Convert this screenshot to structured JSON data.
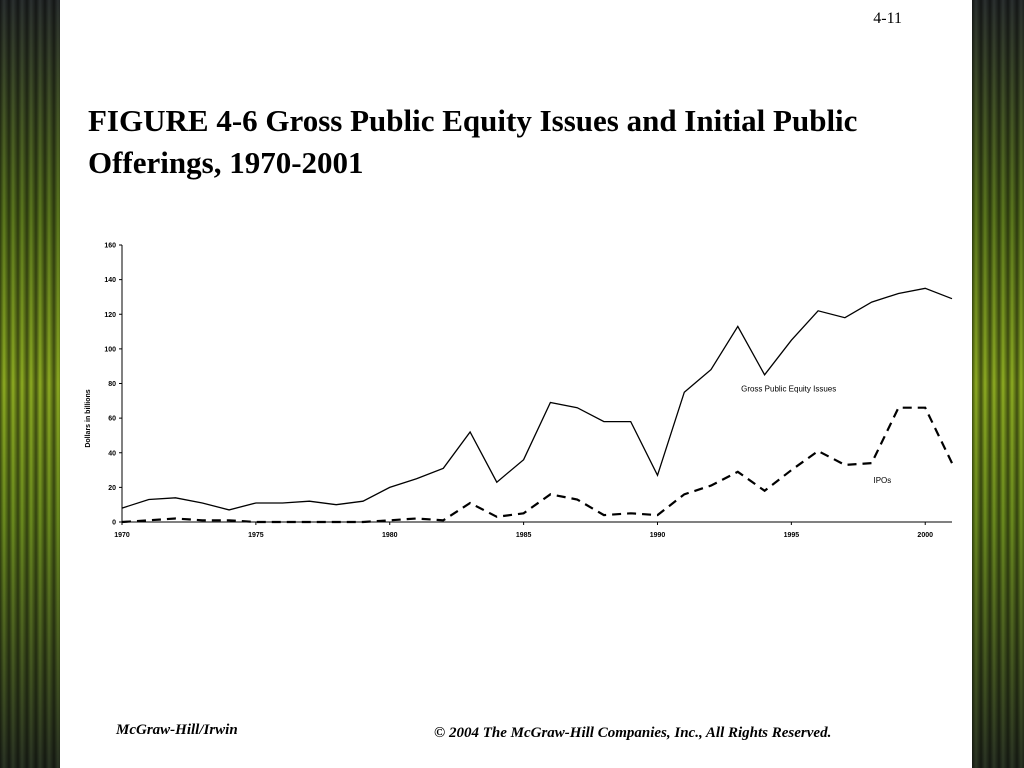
{
  "slide": {
    "page_number": "4-11",
    "title": "FIGURE 4-6 Gross Public Equity Issues and Initial Public Offerings, 1970-2001",
    "footer_left": "McGraw-Hill/Irwin",
    "footer_right": "© 2004 The McGraw-Hill Companies, Inc., All Rights Reserved."
  },
  "chart_data": {
    "type": "line",
    "title": "",
    "xlabel": "",
    "ylabel": "Dollars in billions",
    "xlim": [
      1970,
      2001
    ],
    "ylim": [
      0,
      160
    ],
    "x_ticks": [
      "1970",
      "1975",
      "1980",
      "1985",
      "1990",
      "1995",
      "2000"
    ],
    "y_ticks": [
      "0",
      "20",
      "40",
      "60",
      "80",
      "100",
      "120",
      "140",
      "160"
    ],
    "x": [
      1970,
      1971,
      1972,
      1973,
      1974,
      1975,
      1976,
      1977,
      1978,
      1979,
      1980,
      1981,
      1982,
      1983,
      1984,
      1985,
      1986,
      1987,
      1988,
      1989,
      1990,
      1991,
      1992,
      1993,
      1994,
      1995,
      1996,
      1997,
      1998,
      1999,
      2000,
      2001
    ],
    "series": [
      {
        "name": "Gross Public Equity Issues",
        "style": "solid",
        "values": [
          8,
          13,
          14,
          11,
          7,
          11,
          11,
          12,
          10,
          12,
          20,
          25,
          31,
          52,
          23,
          36,
          69,
          66,
          58,
          58,
          27,
          75,
          88,
          113,
          85,
          105,
          122,
          118,
          127,
          132,
          135,
          129
        ]
      },
      {
        "name": "IPOs",
        "style": "dashed",
        "values": [
          0,
          1,
          2,
          1,
          1,
          0,
          0,
          0,
          0,
          0,
          1,
          2,
          1,
          11,
          3,
          5,
          16,
          13,
          4,
          5,
          4,
          16,
          21,
          29,
          18,
          30,
          41,
          33,
          34,
          66,
          66,
          34
        ]
      }
    ],
    "grid": false,
    "legend": "inline labels"
  }
}
